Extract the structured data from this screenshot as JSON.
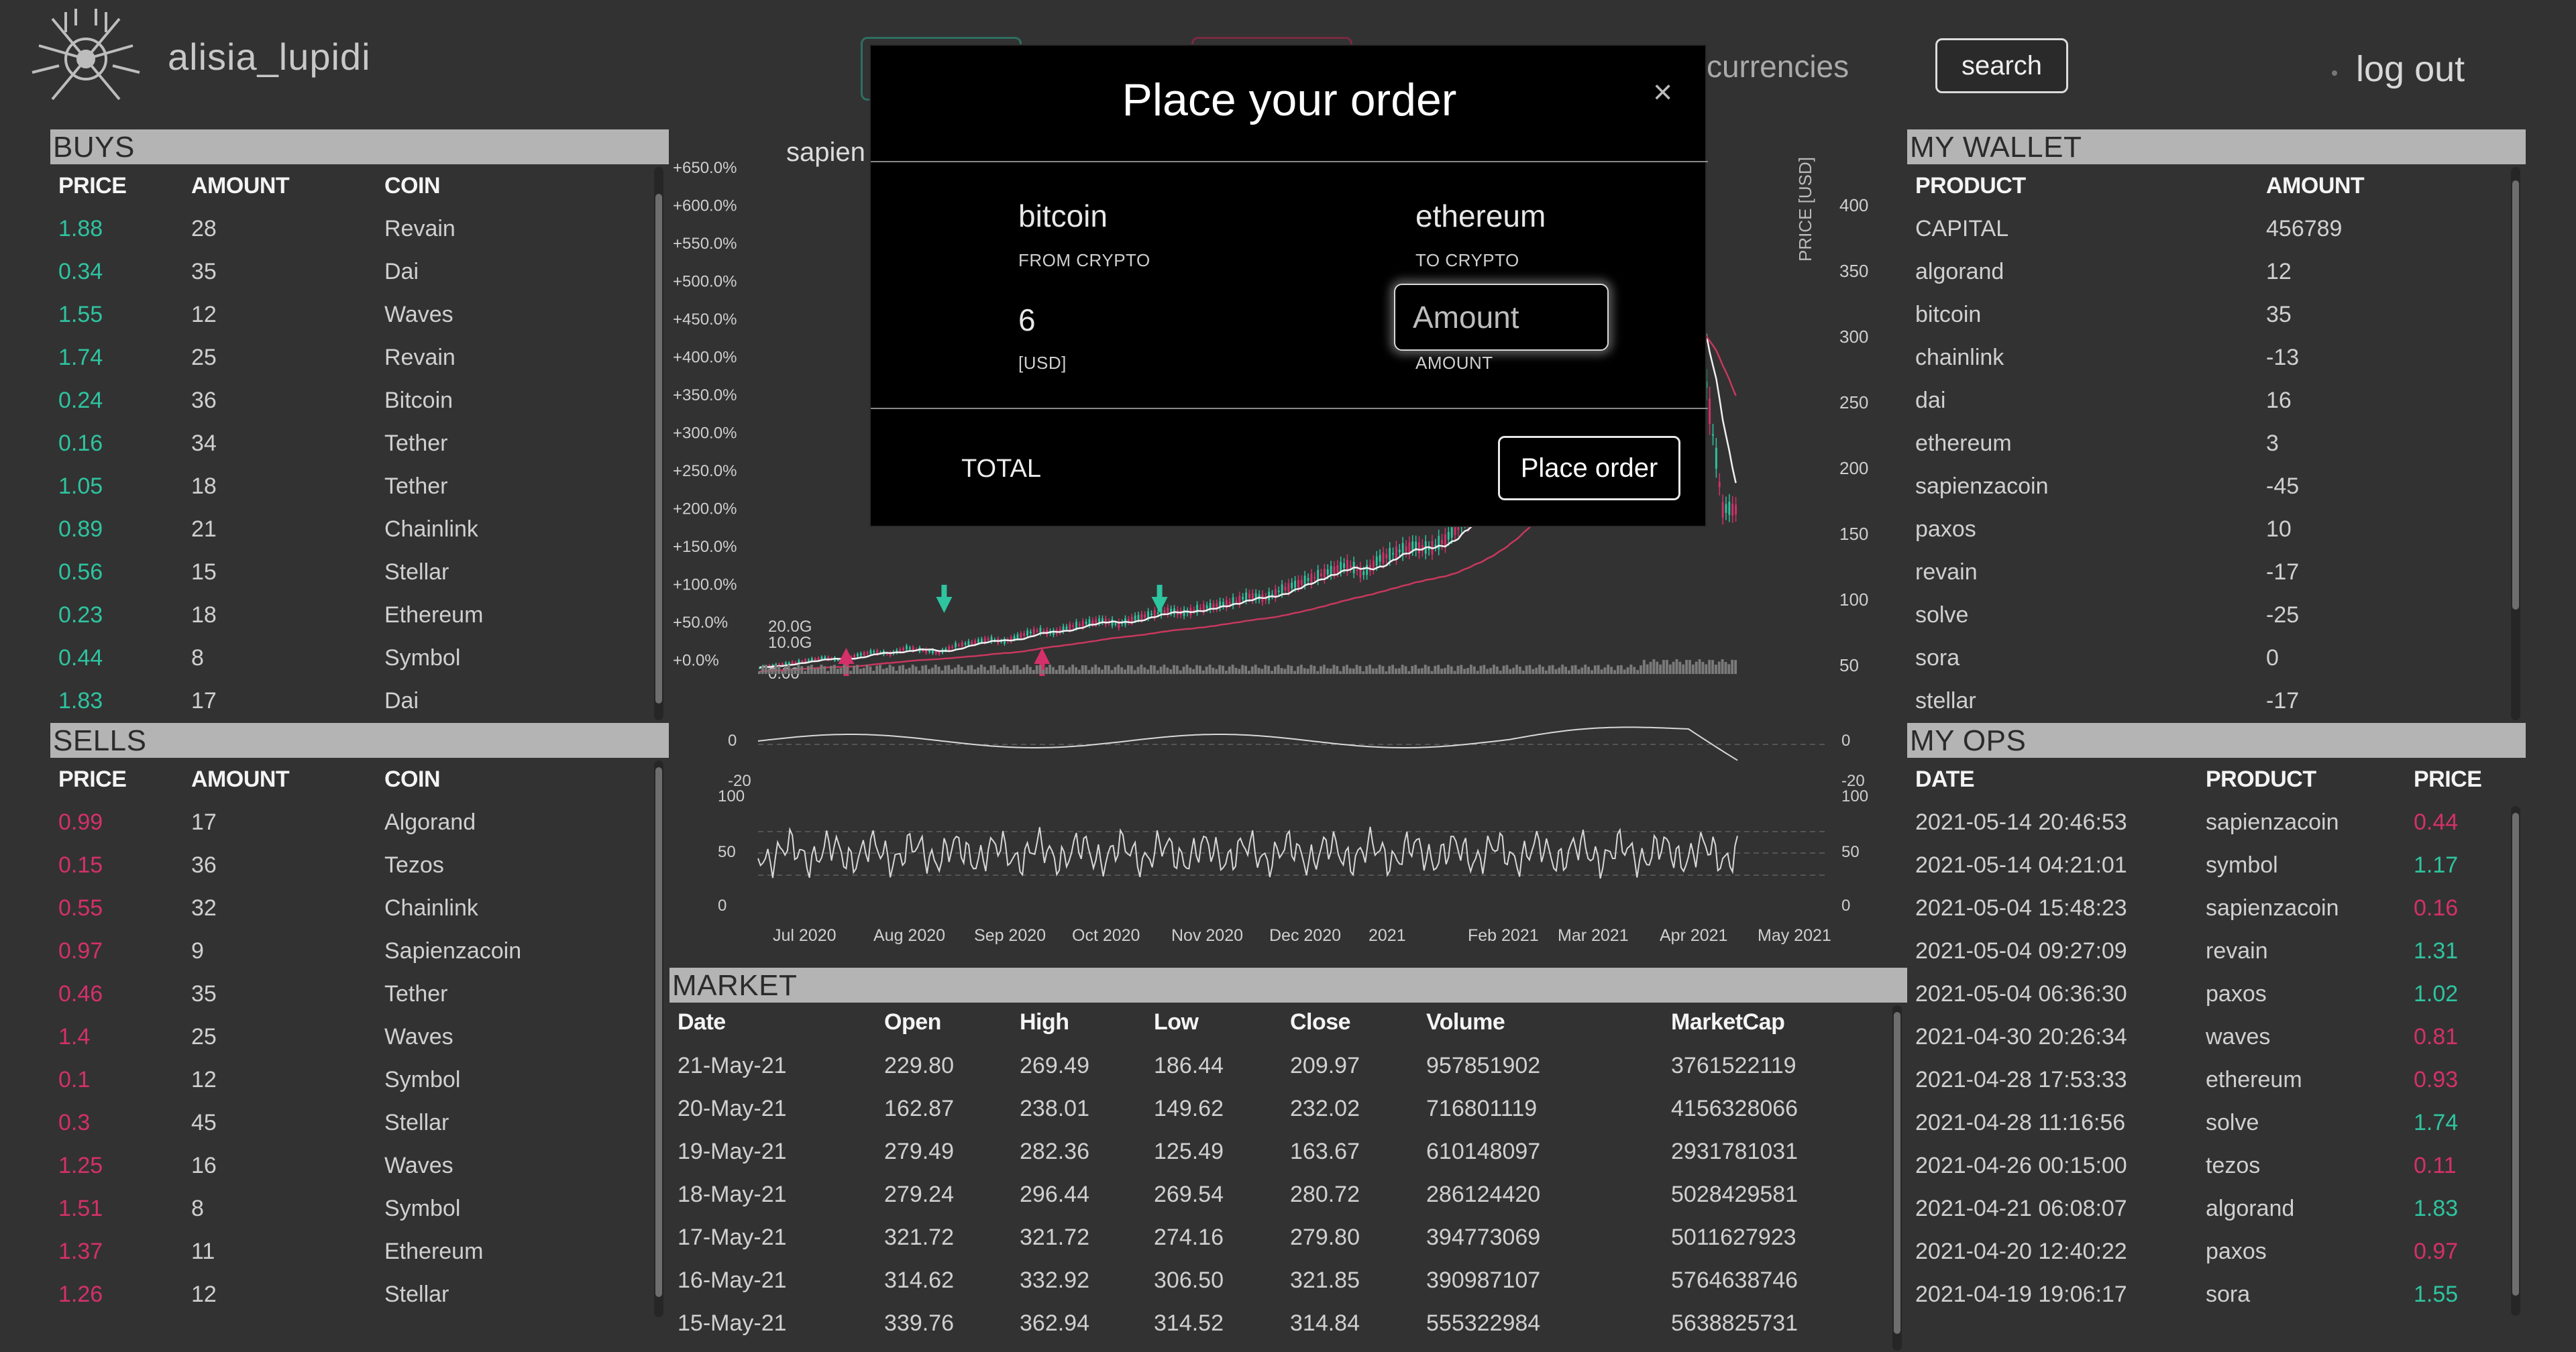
{
  "header": {
    "username": "alisia_lupidi",
    "nav_cryptocurrencies": "otocurrencies",
    "search_label": "search",
    "logout_label": "log out"
  },
  "buys": {
    "title": "BUYS",
    "headers": [
      "PRICE",
      "AMOUNT",
      "COIN"
    ],
    "rows": [
      [
        "1.88",
        "28",
        "Revain"
      ],
      [
        "0.34",
        "35",
        "Dai"
      ],
      [
        "1.55",
        "12",
        "Waves"
      ],
      [
        "1.74",
        "25",
        "Revain"
      ],
      [
        "0.24",
        "36",
        "Bitcoin"
      ],
      [
        "0.16",
        "34",
        "Tether"
      ],
      [
        "1.05",
        "18",
        "Tether"
      ],
      [
        "0.89",
        "21",
        "Chainlink"
      ],
      [
        "0.56",
        "15",
        "Stellar"
      ],
      [
        "0.23",
        "18",
        "Ethereum"
      ],
      [
        "0.44",
        "8",
        "Symbol"
      ],
      [
        "1.83",
        "17",
        "Dai"
      ]
    ]
  },
  "sells": {
    "title": "SELLS",
    "headers": [
      "PRICE",
      "AMOUNT",
      "COIN"
    ],
    "rows": [
      [
        "0.99",
        "17",
        "Algorand"
      ],
      [
        "0.15",
        "36",
        "Tezos"
      ],
      [
        "0.55",
        "32",
        "Chainlink"
      ],
      [
        "0.97",
        "9",
        "Sapienzacoin"
      ],
      [
        "0.46",
        "35",
        "Tether"
      ],
      [
        "1.4",
        "25",
        "Waves"
      ],
      [
        "0.1",
        "12",
        "Symbol"
      ],
      [
        "0.3",
        "45",
        "Stellar"
      ],
      [
        "1.25",
        "16",
        "Waves"
      ],
      [
        "1.51",
        "8",
        "Symbol"
      ],
      [
        "1.37",
        "11",
        "Ethereum"
      ],
      [
        "1.26",
        "12",
        "Stellar"
      ]
    ]
  },
  "wallet": {
    "title": "MY WALLET",
    "headers": [
      "PRODUCT",
      "AMOUNT"
    ],
    "rows": [
      [
        "CAPITAL",
        "456789"
      ],
      [
        "algorand",
        "12"
      ],
      [
        "bitcoin",
        "35"
      ],
      [
        "chainlink",
        "-13"
      ],
      [
        "dai",
        "16"
      ],
      [
        "ethereum",
        "3"
      ],
      [
        "sapienzacoin",
        "-45"
      ],
      [
        "paxos",
        "10"
      ],
      [
        "revain",
        "-17"
      ],
      [
        "solve",
        "-25"
      ],
      [
        "sora",
        "0"
      ],
      [
        "stellar",
        "-17"
      ]
    ]
  },
  "ops": {
    "title": "MY OPS",
    "headers": [
      "DATE",
      "PRODUCT",
      "PRICE"
    ],
    "rows": [
      [
        "2021-05-14 20:46:53",
        "sapienzacoin",
        "0.44",
        "red"
      ],
      [
        "2021-05-14 04:21:01",
        "symbol",
        "1.17",
        "green"
      ],
      [
        "2021-05-04 15:48:23",
        "sapienzacoin",
        "0.16",
        "red"
      ],
      [
        "2021-05-04 09:27:09",
        "revain",
        "1.31",
        "green"
      ],
      [
        "2021-05-04 06:36:30",
        "paxos",
        "1.02",
        "green"
      ],
      [
        "2021-04-30 20:26:34",
        "waves",
        "0.81",
        "red"
      ],
      [
        "2021-04-28 17:53:33",
        "ethereum",
        "0.93",
        "red"
      ],
      [
        "2021-04-28 11:16:56",
        "solve",
        "1.74",
        "green"
      ],
      [
        "2021-04-26 00:15:00",
        "tezos",
        "0.11",
        "red"
      ],
      [
        "2021-04-21 06:08:07",
        "algorand",
        "1.83",
        "green"
      ],
      [
        "2021-04-20 12:40:22",
        "paxos",
        "0.97",
        "red"
      ],
      [
        "2021-04-19 19:06:17",
        "sora",
        "1.55",
        "green"
      ]
    ]
  },
  "market": {
    "title": "MARKET",
    "headers": [
      "Date",
      "Open",
      "High",
      "Low",
      "Close",
      "Volume",
      "MarketCap"
    ],
    "rows": [
      [
        "21-May-21",
        "229.80",
        "269.49",
        "186.44",
        "209.97",
        "957851902",
        "3761522119"
      ],
      [
        "20-May-21",
        "162.87",
        "238.01",
        "149.62",
        "232.02",
        "716801119",
        "4156328066"
      ],
      [
        "19-May-21",
        "279.49",
        "282.36",
        "125.49",
        "163.67",
        "610148097",
        "2931781031"
      ],
      [
        "18-May-21",
        "279.24",
        "296.44",
        "269.54",
        "280.72",
        "286124420",
        "5028429581"
      ],
      [
        "17-May-21",
        "321.72",
        "321.72",
        "274.16",
        "279.80",
        "394773069",
        "5011627923"
      ],
      [
        "16-May-21",
        "314.62",
        "332.92",
        "306.50",
        "321.85",
        "390987107",
        "5764638746"
      ],
      [
        "15-May-21",
        "339.76",
        "362.94",
        "314.52",
        "314.84",
        "555322984",
        "5638825731"
      ]
    ]
  },
  "chart_data": {
    "type": "candlestick",
    "title": "sapien",
    "ylabel_right": "PRICE [USD]",
    "x_ticks": [
      "Jul 2020",
      "Aug 2020",
      "Sep 2020",
      "Oct 2020",
      "Nov 2020",
      "Dec 2020",
      "2021",
      "Feb 2021",
      "Mar 2021",
      "Apr 2021",
      "May 2021"
    ],
    "left_axis_ticks": [
      "+650.0%",
      "+600.0%",
      "+550.0%",
      "+500.0%",
      "+450.0%",
      "+400.0%",
      "+350.0%",
      "+300.0%",
      "+250.0%",
      "+200.0%",
      "+150.0%",
      "+100.0%",
      "+50.0%",
      "+0.0%"
    ],
    "right_axis_ticks": [
      "400",
      "350",
      "300",
      "250",
      "200",
      "150",
      "100",
      "50"
    ],
    "volume_ticks": [
      "20.0G",
      "10.0G",
      "0.00"
    ],
    "macd_ticks_left": [
      "0",
      "-20"
    ],
    "macd_ticks_right": [
      "0",
      "-20"
    ],
    "rsi_ticks_left": [
      "100",
      "50",
      "0"
    ],
    "rsi_ticks_right": [
      "100",
      "50",
      "0"
    ],
    "price_range": [
      25,
      420
    ],
    "approx_close_series": [
      22,
      24,
      26,
      28,
      30,
      28,
      32,
      35,
      33,
      38,
      36,
      34,
      40,
      42,
      45,
      43,
      48,
      52,
      50,
      55,
      58,
      60,
      57,
      62,
      65,
      68,
      66,
      70,
      72,
      75,
      80,
      78,
      85,
      90,
      95,
      100,
      105,
      98,
      110,
      115,
      120,
      118,
      125,
      140,
      150,
      170,
      190,
      210,
      240,
      270,
      300,
      330,
      350,
      370,
      380,
      360,
      340,
      300,
      250,
      150
    ],
    "buy_markers_x_fraction": [
      0.19,
      0.41
    ],
    "sell_markers_x_fraction": [
      0.09,
      0.29
    ],
    "colors": {
      "up": "#2ec4a0",
      "down": "#d4306a",
      "ma_fast": "#f0f0f0",
      "ma_slow": "#c8385e"
    }
  },
  "modal": {
    "title": "Place your order",
    "close_icon": "×",
    "from_value": "bitcoin",
    "from_label": "FROM CRYPTO",
    "to_value": "ethereum",
    "to_label": "TO CRYPTO",
    "usd_value": "6",
    "usd_label": "[USD]",
    "amount_placeholder": "Amount",
    "amount_label": "AMOUNT",
    "total_label": "TOTAL",
    "place_order_label": "Place order"
  }
}
